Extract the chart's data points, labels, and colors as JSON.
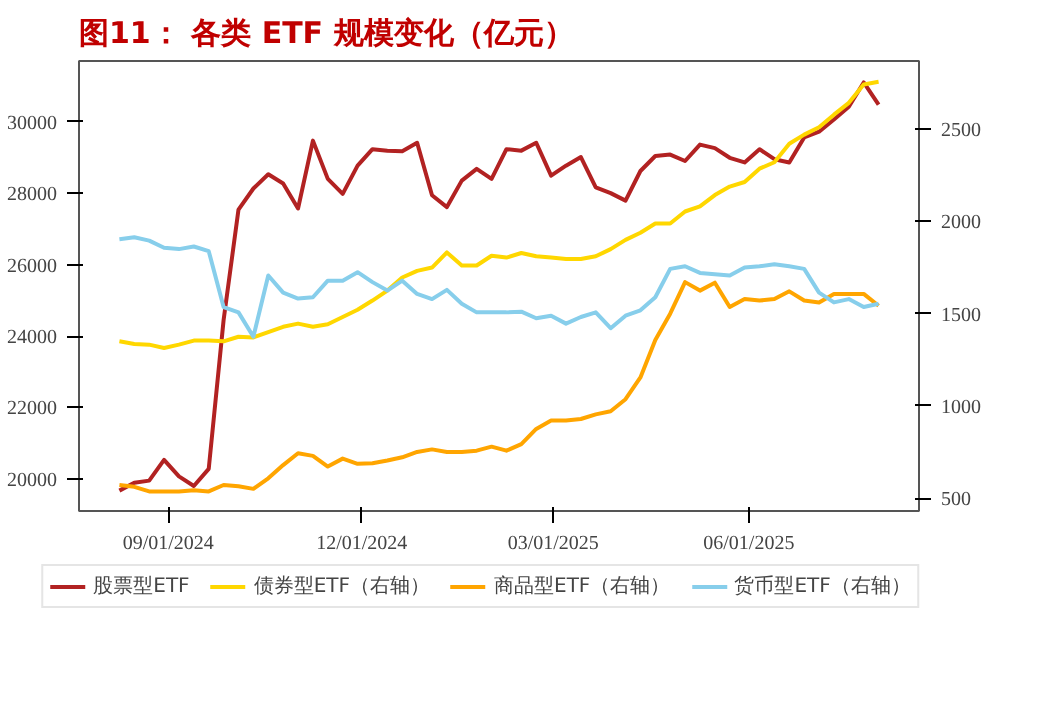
{
  "chart_data": {
    "type": "line",
    "title": "图11： 各类 ETF 规模变化（亿元）",
    "x": [
      "2024-08-09",
      "2024-08-16",
      "2024-08-23",
      "2024-08-30",
      "2024-09-06",
      "2024-09-13",
      "2024-09-20",
      "2024-09-27",
      "2024-10-04",
      "2024-10-11",
      "2024-10-18",
      "2024-10-25",
      "2024-11-01",
      "2024-11-08",
      "2024-11-15",
      "2024-11-22",
      "2024-11-29",
      "2024-12-06",
      "2024-12-13",
      "2024-12-20",
      "2024-12-27",
      "2025-01-03",
      "2025-01-10",
      "2025-01-17",
      "2025-01-24",
      "2025-01-31",
      "2025-02-07",
      "2025-02-14",
      "2025-02-21",
      "2025-02-28",
      "2025-03-07",
      "2025-03-14",
      "2025-03-21",
      "2025-03-28",
      "2025-04-04",
      "2025-04-11",
      "2025-04-18",
      "2025-04-25",
      "2025-05-02",
      "2025-05-09",
      "2025-05-16",
      "2025-05-23",
      "2025-05-30",
      "2025-06-06",
      "2025-06-13",
      "2025-06-20",
      "2025-06-27",
      "2025-07-04",
      "2025-07-11",
      "2025-07-18",
      "2025-07-25",
      "2025-08-01"
    ],
    "series": [
      {
        "name": "股票型ETF",
        "color": "#b22222",
        "values": [
          19670,
          19890,
          19950,
          20530,
          20070,
          19800,
          20280,
          24450,
          27540,
          28130,
          28530,
          28270,
          27570,
          29470,
          28400,
          27980,
          28770,
          29230,
          29190,
          29170,
          29410,
          27940,
          27610,
          28350,
          28680,
          28400,
          29230,
          29190,
          29410,
          28490,
          28770,
          29010,
          28160,
          28000,
          27790,
          28620,
          29040,
          29080,
          28900,
          29360,
          29260,
          28990,
          28860,
          29230,
          28950,
          28860,
          29560,
          29720,
          30060,
          30420,
          31100,
          30480
        ]
      },
      {
        "name": "债券型ETF（右轴）",
        "color": "#ffd700",
        "axis": "y2",
        "values": [
          1350,
          1336,
          1332,
          1314,
          1332,
          1354,
          1354,
          1350,
          1375,
          1371,
          1400,
          1429,
          1446,
          1429,
          1443,
          1482,
          1521,
          1571,
          1625,
          1696,
          1732,
          1750,
          1832,
          1761,
          1761,
          1814,
          1804,
          1829,
          1811,
          1804,
          1796,
          1796,
          1811,
          1850,
          1900,
          1939,
          1989,
          1989,
          2054,
          2082,
          2143,
          2189,
          2214,
          2286,
          2321,
          2421,
          2471,
          2511,
          2579,
          2643,
          2743,
          2757
        ]
      },
      {
        "name": "商品型ETF（右轴）",
        "color": "#ffa500",
        "axis": "y2",
        "values": [
          571,
          561,
          536,
          536,
          536,
          543,
          536,
          571,
          564,
          550,
          607,
          679,
          743,
          729,
          671,
          714,
          686,
          689,
          704,
          721,
          750,
          764,
          750,
          750,
          757,
          779,
          757,
          793,
          875,
          921,
          921,
          929,
          954,
          971,
          1036,
          1154,
          1357,
          1500,
          1671,
          1625,
          1668,
          1536,
          1579,
          1571,
          1579,
          1621,
          1571,
          1561,
          1607,
          1607,
          1607,
          1543
        ]
      },
      {
        "name": "货币型ETF（右轴）",
        "color": "#87ceeb",
        "axis": "y2",
        "values": [
          1904,
          1914,
          1896,
          1857,
          1850,
          1864,
          1839,
          1536,
          1507,
          1375,
          1707,
          1614,
          1582,
          1589,
          1679,
          1679,
          1725,
          1671,
          1625,
          1679,
          1607,
          1579,
          1629,
          1554,
          1507,
          1507,
          1507,
          1511,
          1475,
          1489,
          1446,
          1482,
          1507,
          1421,
          1489,
          1518,
          1589,
          1743,
          1757,
          1721,
          1714,
          1707,
          1750,
          1757,
          1768,
          1757,
          1743,
          1614,
          1561,
          1579,
          1536,
          1554
        ]
      }
    ],
    "xlim": [
      "2024-07-21",
      "2025-08-20"
    ],
    "xticks": [
      {
        "value": "2024-09-01",
        "label": "09/01/2024"
      },
      {
        "value": "2024-12-01",
        "label": "12/01/2024"
      },
      {
        "value": "2025-03-01",
        "label": "03/01/2025"
      },
      {
        "value": "2025-06-01",
        "label": "06/01/2025"
      }
    ],
    "ylim": [
      19100,
      31700
    ],
    "yticks": [
      20000,
      22000,
      24000,
      26000,
      28000,
      30000
    ],
    "y2lim": [
      430,
      2870
    ],
    "y2ticks": [
      500,
      1000,
      1500,
      2000,
      2500
    ],
    "grid": false,
    "legend": "bottom",
    "line_style": "solid",
    "marker": "none"
  }
}
